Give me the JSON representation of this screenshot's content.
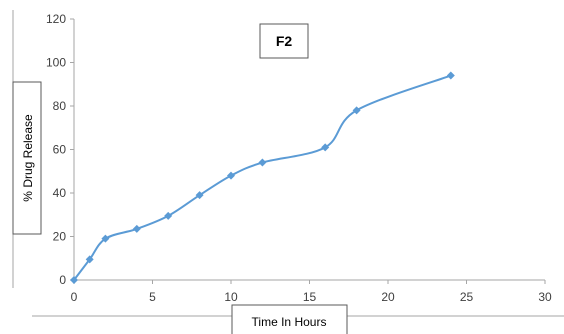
{
  "chart_data": {
    "type": "line",
    "title": "F2",
    "xlabel": "Time In Hours",
    "ylabel": "% Drug Release",
    "xlim": [
      0,
      30
    ],
    "ylim": [
      0,
      120
    ],
    "x_ticks": [
      0,
      5,
      10,
      15,
      20,
      25,
      30
    ],
    "y_ticks": [
      0,
      20,
      40,
      60,
      80,
      100,
      120
    ],
    "grid": false,
    "legend": "none",
    "series_color": "#5b9bd5",
    "series": [
      {
        "x": [
          0,
          1,
          2,
          4,
          6,
          8,
          10,
          12,
          16,
          18,
          24
        ],
        "values": [
          0,
          9.5,
          19,
          23.5,
          29.5,
          39,
          48,
          54,
          61,
          78,
          94
        ]
      }
    ]
  }
}
